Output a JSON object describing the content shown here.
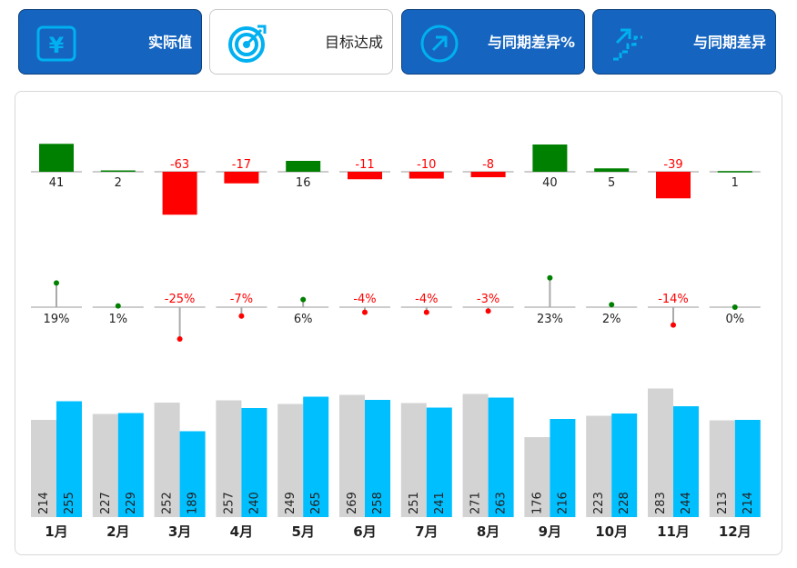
{
  "cards": [
    {
      "label": "实际值",
      "icon": "yuan-icon",
      "theme": "dark"
    },
    {
      "label": "目标达成",
      "icon": "target-icon",
      "theme": "light"
    },
    {
      "label": "与同期差异%",
      "icon": "arrow-up-right-icon",
      "theme": "dark"
    },
    {
      "label": "与同期差异",
      "icon": "stairs-icon",
      "theme": "dark"
    }
  ],
  "colors": {
    "accent": "#1565C0",
    "icon_cyan": "#00B0F0",
    "positive": "#008000",
    "negative": "#FF0000",
    "prior": "#D3D3D3",
    "current": "#00BFFF"
  },
  "chart_data": {
    "type": "bar",
    "categories": [
      "1月",
      "2月",
      "3月",
      "4月",
      "5月",
      "6月",
      "7月",
      "8月",
      "9月",
      "10月",
      "11月",
      "12月"
    ],
    "series": [
      {
        "values": [
          214,
          227,
          252,
          257,
          249,
          269,
          251,
          271,
          176,
          223,
          283,
          213
        ]
      },
      {
        "values": [
          255,
          229,
          189,
          240,
          265,
          258,
          241,
          263,
          216,
          228,
          244,
          214
        ]
      }
    ],
    "variance": [
      41,
      2,
      -63,
      -17,
      16,
      -11,
      -10,
      -8,
      40,
      5,
      -39,
      1
    ],
    "variance_pct": [
      "19%",
      "1%",
      "-25%",
      "-7%",
      "6%",
      "-4%",
      "-4%",
      "-3%",
      "23%",
      "2%",
      "-14%",
      "0%"
    ],
    "variance_pct_values": [
      19,
      1,
      -25,
      -7,
      6,
      -4,
      -4,
      -3,
      23,
      2,
      -14,
      0
    ]
  }
}
